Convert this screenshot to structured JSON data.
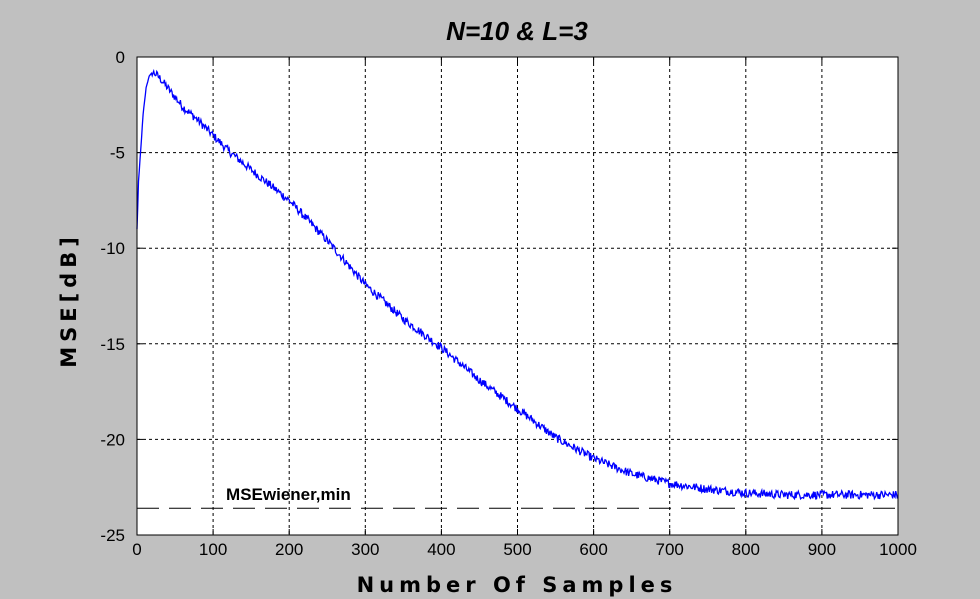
{
  "chart_data": {
    "type": "line",
    "title": "N=10 & L=3",
    "xlabel": "Number Of Samples",
    "ylabel": "MSE[dB]",
    "xlim": [
      0,
      1000
    ],
    "ylim": [
      -25,
      0
    ],
    "xticks": [
      0,
      100,
      200,
      300,
      400,
      500,
      600,
      700,
      800,
      900,
      1000
    ],
    "yticks": [
      0,
      -5,
      -10,
      -15,
      -20,
      -25
    ],
    "grid": true,
    "series": [
      {
        "color": "#0000ff",
        "x": [
          0,
          2,
          5,
          8,
          12,
          16,
          20,
          25,
          30,
          40,
          50,
          60,
          80,
          100,
          120,
          150,
          200,
          250,
          300,
          350,
          400,
          450,
          500,
          550,
          600,
          650,
          700,
          750,
          800,
          850,
          900,
          950,
          1000
        ],
        "y": [
          -9.0,
          -6.5,
          -4.8,
          -3.0,
          -1.6,
          -1.0,
          -0.8,
          -0.9,
          -1.1,
          -1.6,
          -2.1,
          -2.6,
          -3.3,
          -4.1,
          -4.9,
          -5.9,
          -7.5,
          -9.6,
          -11.9,
          -13.7,
          -15.2,
          -16.9,
          -18.4,
          -19.9,
          -21.0,
          -21.8,
          -22.3,
          -22.6,
          -22.8,
          -22.9,
          -22.9,
          -22.9,
          -22.9
        ]
      }
    ],
    "reference_line": {
      "label": "MSEwiener,min",
      "y": -23.6,
      "style": "dashed",
      "color": "#000000"
    }
  }
}
